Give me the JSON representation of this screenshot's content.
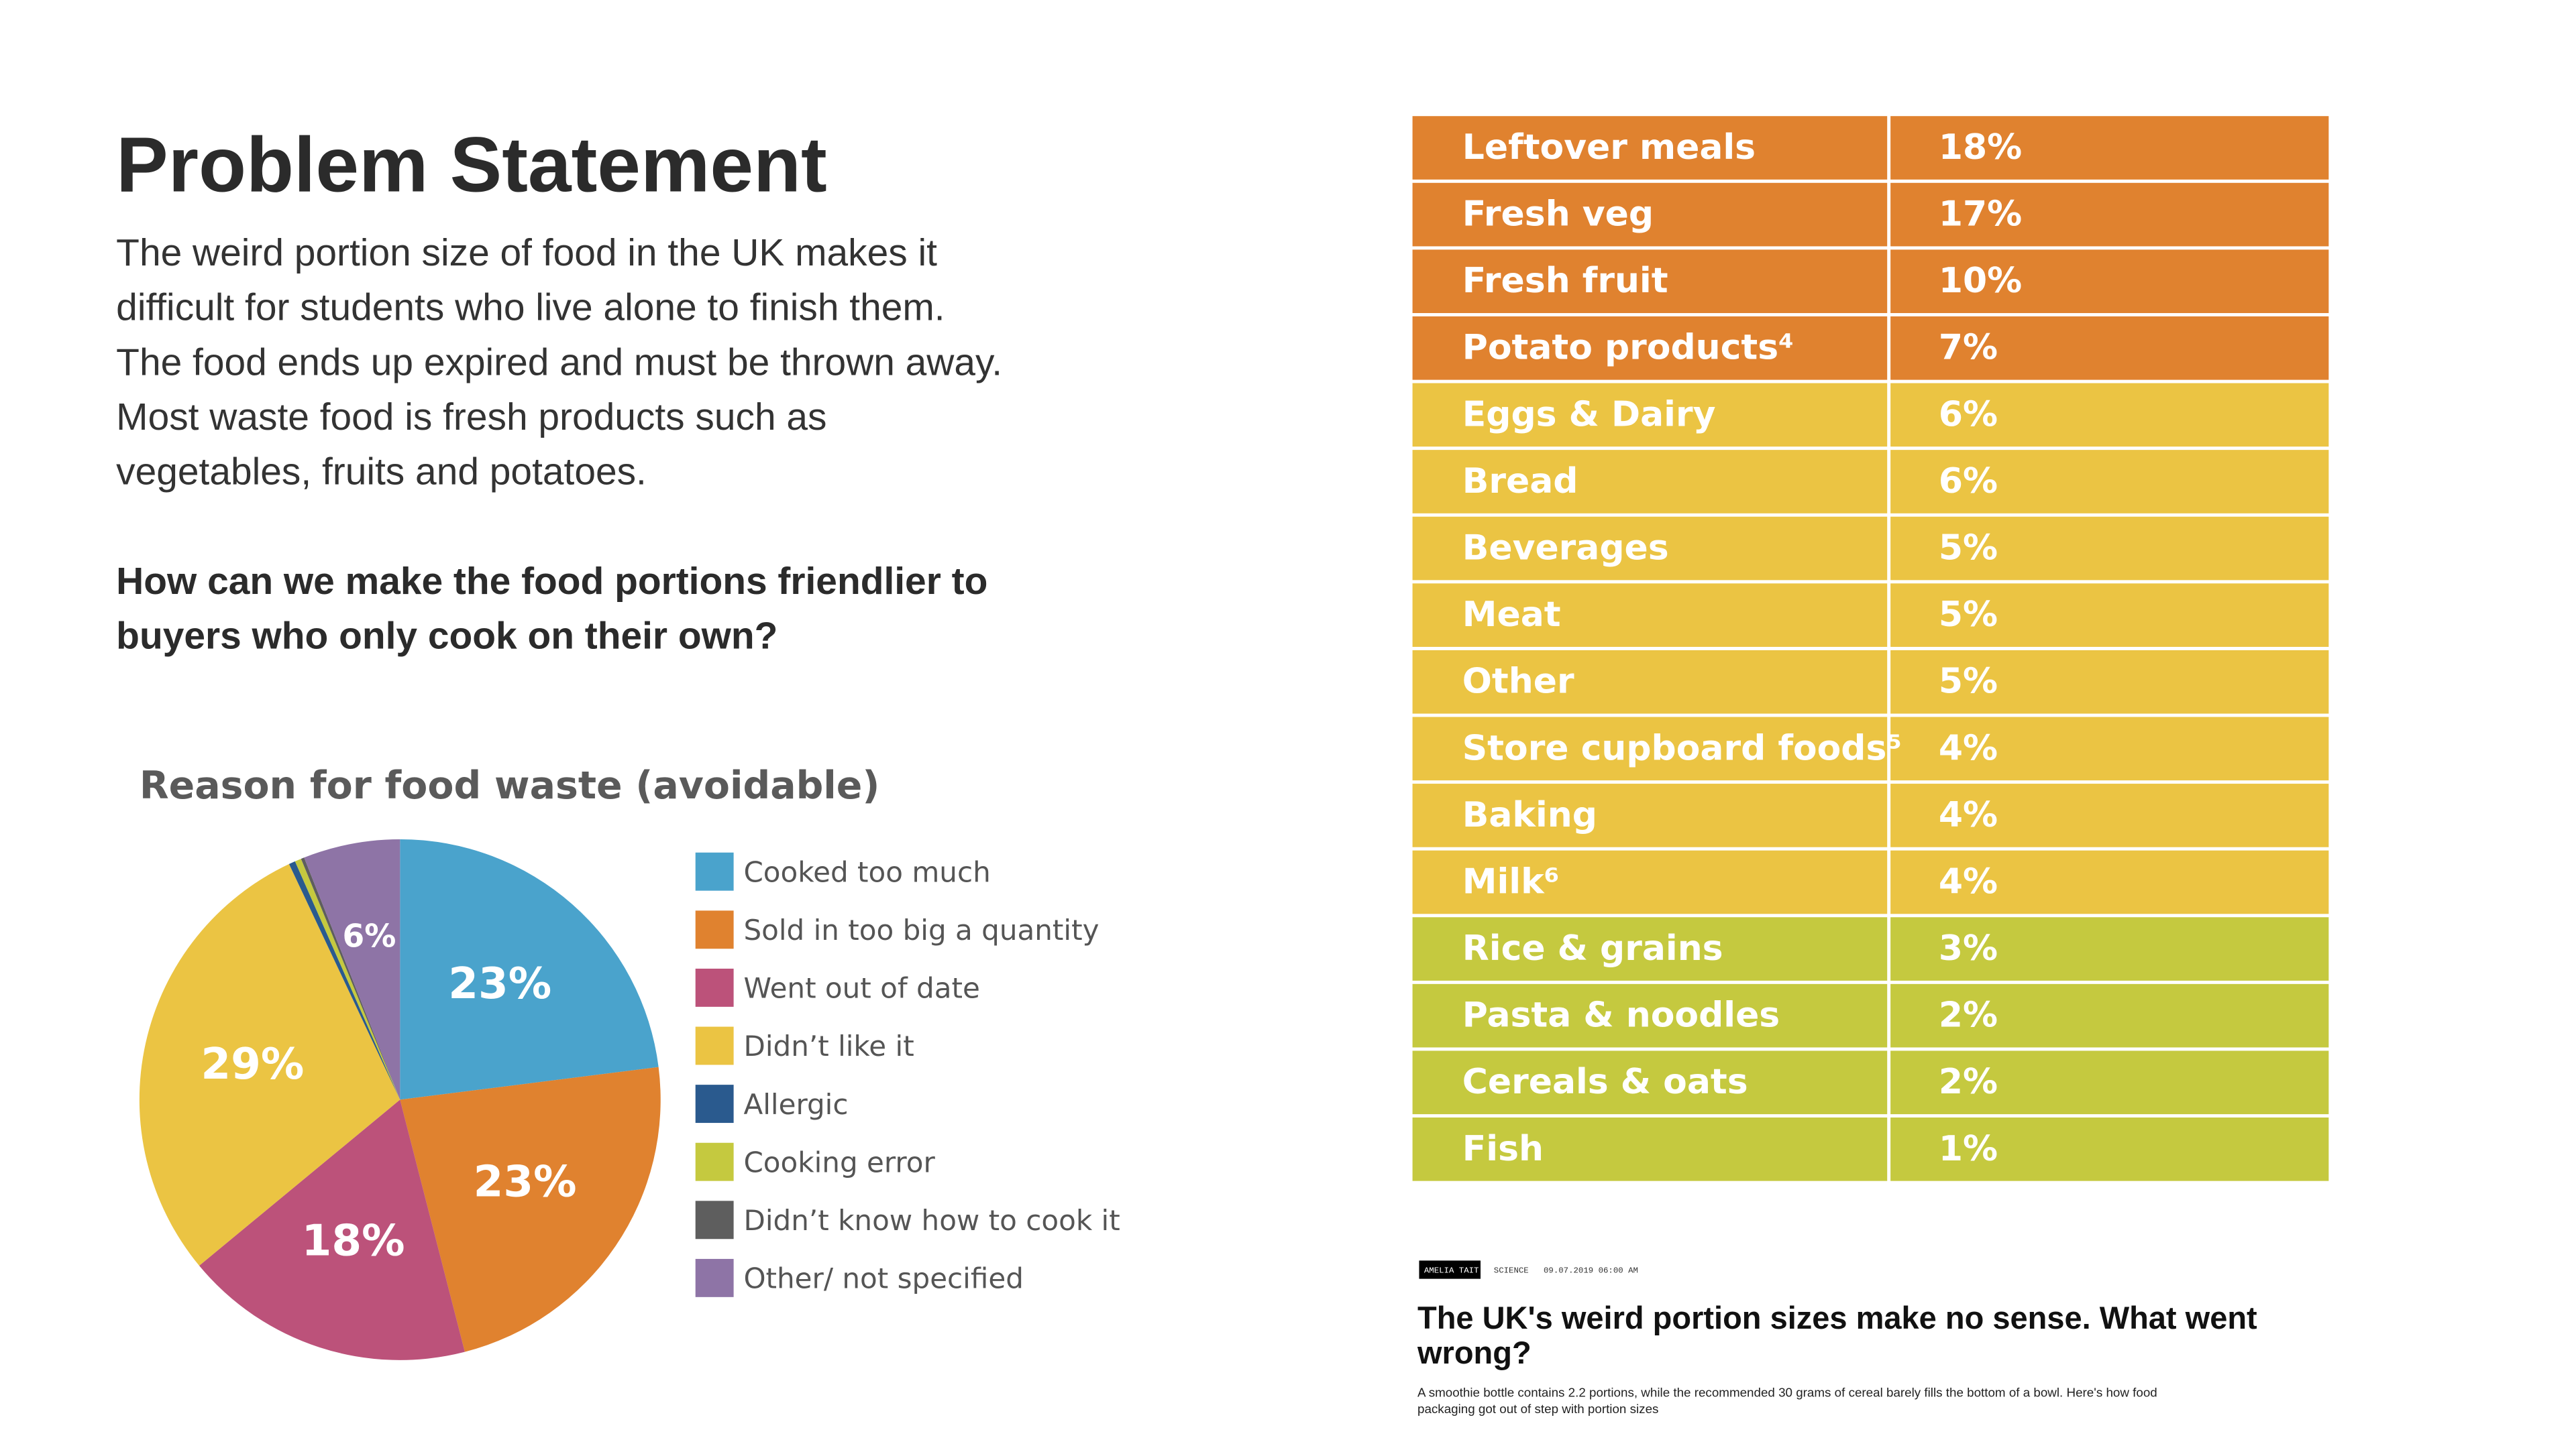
{
  "header": {
    "title": "Problem Statement"
  },
  "body": {
    "lines": [
      "The weird portion size of food in the UK makes it",
      "difficult for students who live alone to finish them.",
      "The food ends up expired and must be thrown away.",
      "Most waste food is fresh products such as",
      "vegetables, fruits and potatoes."
    ]
  },
  "question": {
    "lines": [
      "How can we make the food portions friendlier to",
      "buyers who only cook on their own?"
    ]
  },
  "chart_data": {
    "type": "pie",
    "title": "Reason for food waste (avoidable)",
    "categories": [
      "Cooked too much",
      "Sold in too big a quantity",
      "Went out of date",
      "Didn’t like it",
      "Allergic",
      "Cooking error",
      "Didn’t know how to cook it",
      "Other/ not specified"
    ],
    "values": [
      23,
      23,
      18,
      29,
      0.4,
      0.4,
      0.2,
      6
    ],
    "value_labels": [
      "23%",
      "23%",
      "18%",
      "29%",
      null,
      null,
      null,
      "6%"
    ],
    "colors": [
      "#4aa3cc",
      "#e0822f",
      "#bc527a",
      "#ebc443",
      "#2a5a8e",
      "#c5c93f",
      "#5e5e5e",
      "#8e74a6"
    ]
  },
  "table": {
    "rows": [
      {
        "label": "Leftover meals",
        "value": "18%",
        "color": "#e0822f"
      },
      {
        "label": "Fresh veg",
        "value": "17%",
        "color": "#e0822f"
      },
      {
        "label": "Fresh fruit",
        "value": "10%",
        "color": "#e0822f"
      },
      {
        "label": "Potato products⁴",
        "value": "7%",
        "color": "#e0822f"
      },
      {
        "label": "Eggs & Dairy",
        "value": "6%",
        "color": "#ebc443"
      },
      {
        "label": "Bread",
        "value": "6%",
        "color": "#ebc443"
      },
      {
        "label": "Beverages",
        "value": "5%",
        "color": "#ebc443"
      },
      {
        "label": "Meat",
        "value": "5%",
        "color": "#ebc443"
      },
      {
        "label": "Other",
        "value": "5%",
        "color": "#ebc443"
      },
      {
        "label": "Store cupboard foods⁵",
        "value": "4%",
        "color": "#ebc443"
      },
      {
        "label": "Baking",
        "value": "4%",
        "color": "#ebc443"
      },
      {
        "label": "Milk⁶",
        "value": "4%",
        "color": "#ebc443"
      },
      {
        "label": "Rice & grains",
        "value": "3%",
        "color": "#c5c93f"
      },
      {
        "label": "Pasta & noodles",
        "value": "2%",
        "color": "#c5c93f"
      },
      {
        "label": "Cereals & oats",
        "value": "2%",
        "color": "#c5c93f"
      },
      {
        "label": "Fish",
        "value": "1%",
        "color": "#c5c93f"
      }
    ]
  },
  "article": {
    "author": "AMELIA TAIT",
    "section": "SCIENCE",
    "date": "09.07.2019 06:00 AM",
    "headline": {
      "lines": [
        "The UK's weird portion sizes make no sense. What went",
        "wrong?"
      ]
    },
    "summary": {
      "lines": [
        "A smoothie bottle contains 2.2 portions, while the recommended 30 grams of cereal barely fills the bottom of a bowl. Here's how food",
        "packaging got out of step with portion sizes"
      ]
    }
  }
}
